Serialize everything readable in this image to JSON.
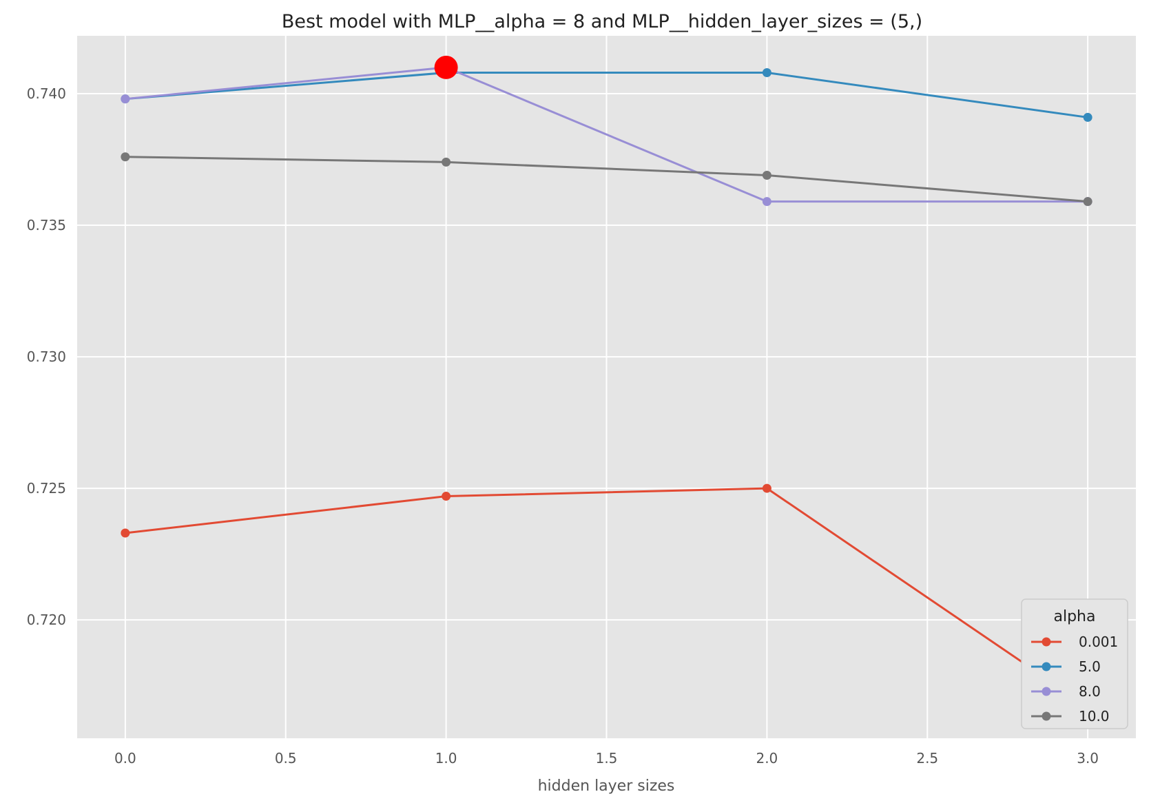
{
  "chart_data": {
    "type": "line",
    "title": "Best model with MLP__alpha = 8 and MLP__hidden_layer_sizes = (5,)",
    "xlabel": "hidden layer sizes",
    "ylabel": "",
    "x": [
      0,
      1,
      2,
      3
    ],
    "xlim": [
      -0.15,
      3.15
    ],
    "ylim": [
      0.7155,
      0.7422
    ],
    "xticks": [
      0.0,
      0.5,
      1.0,
      1.5,
      2.0,
      2.5,
      3.0
    ],
    "xtick_labels": [
      "0.0",
      "0.5",
      "1.0",
      "1.5",
      "2.0",
      "2.5",
      "3.0"
    ],
    "yticks": [
      0.72,
      0.725,
      0.73,
      0.735,
      0.74
    ],
    "ytick_labels": [
      "0.720",
      "0.725",
      "0.730",
      "0.735",
      "0.740"
    ],
    "grid": true,
    "legend_title": "alpha",
    "legend_position": "lower-right",
    "series": [
      {
        "name": "0.001",
        "color": "#E24A33",
        "values": [
          0.7233,
          0.7247,
          0.725,
          0.7167
        ]
      },
      {
        "name": "5.0",
        "color": "#348ABD",
        "values": [
          0.7398,
          0.7408,
          0.7408,
          0.7391
        ]
      },
      {
        "name": "8.0",
        "color": "#988ED5",
        "values": [
          0.7398,
          0.741,
          0.7359,
          0.7359
        ]
      },
      {
        "name": "10.0",
        "color": "#777777",
        "values": [
          0.7376,
          0.7374,
          0.7369,
          0.7359
        ]
      }
    ],
    "highlight": {
      "x": 1,
      "y": 0.741,
      "color": "#FF0000"
    }
  }
}
